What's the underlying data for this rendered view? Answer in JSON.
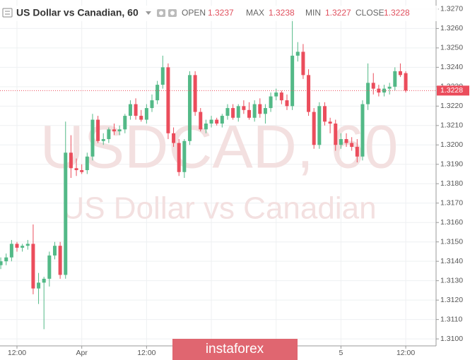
{
  "chart_data": {
    "type": "candlestick",
    "title": "US Dollar vs Canadian, 60",
    "header": {
      "open_label": "OPEN",
      "open": "1.3237",
      "max_label": "MAX",
      "max": "1.3238",
      "min_label": "MIN",
      "min": "1.3227",
      "close_label": "CLOSE",
      "close": "1.3228"
    },
    "watermark": {
      "symbol": "USDCAD, 60",
      "name": "US Dollar vs Canadian"
    },
    "banner": "instaforex",
    "up_color": "#53b987",
    "down_color": "#eb4d5c",
    "categories": [
      null,
      null,
      null,
      "12:00",
      null,
      null,
      null,
      null,
      null,
      null,
      null,
      null,
      null,
      null,
      null,
      "Apr",
      null,
      null,
      null,
      null,
      null,
      null,
      null,
      null,
      null,
      null,
      null,
      "12:00",
      null,
      null,
      null,
      null,
      null,
      null,
      null,
      null,
      null,
      null,
      null,
      null,
      null,
      null,
      null,
      null,
      null,
      null,
      null,
      null,
      null,
      null,
      null,
      null,
      null,
      null,
      null,
      null,
      null,
      null,
      null,
      null,
      null,
      null,
      null,
      "5",
      null,
      null,
      null,
      null,
      null,
      null,
      null,
      null,
      null,
      null,
      null,
      "12:00"
    ],
    "values": [
      [
        1.3138,
        1.3142,
        1.3136,
        1.314
      ],
      [
        1.314,
        1.3144,
        1.3138,
        1.3142
      ],
      [
        1.3142,
        1.3151,
        1.314,
        1.3149
      ],
      [
        1.3149,
        1.315,
        1.3145,
        1.3147
      ],
      [
        1.3147,
        1.3149,
        1.3145,
        1.3148
      ],
      [
        1.3148,
        1.3151,
        1.3146,
        1.3149
      ],
      [
        1.3149,
        1.3159,
        1.3123,
        1.3126
      ],
      [
        1.3126,
        1.3134,
        1.3118,
        1.3129
      ],
      [
        1.3129,
        1.3132,
        1.3105,
        1.3131
      ],
      [
        1.3131,
        1.3145,
        1.3127,
        1.3143
      ],
      [
        1.3143,
        1.315,
        1.3141,
        1.3148
      ],
      [
        1.3148,
        1.315,
        1.3131,
        1.3133
      ],
      [
        1.3133,
        1.3212,
        1.3131,
        1.3196
      ],
      [
        1.3196,
        1.3205,
        1.3183,
        1.3188
      ],
      [
        1.3188,
        1.3193,
        1.3184,
        1.3187
      ],
      [
        1.3187,
        1.319,
        1.3185,
        1.3186
      ],
      [
        1.3187,
        1.3196,
        1.3185,
        1.3194
      ],
      [
        1.3194,
        1.3216,
        1.3192,
        1.3213
      ],
      [
        1.3213,
        1.3215,
        1.3201,
        1.3202
      ],
      [
        1.3202,
        1.3206,
        1.32,
        1.3203
      ],
      [
        1.3203,
        1.3209,
        1.3201,
        1.3208
      ],
      [
        1.3208,
        1.3211,
        1.3205,
        1.3207
      ],
      [
        1.3207,
        1.321,
        1.3205,
        1.3208
      ],
      [
        1.3208,
        1.3216,
        1.3206,
        1.3215
      ],
      [
        1.3215,
        1.3223,
        1.3213,
        1.3221
      ],
      [
        1.3221,
        1.3224,
        1.3213,
        1.3215
      ],
      [
        1.3215,
        1.3218,
        1.3212,
        1.3213
      ],
      [
        1.3213,
        1.3221,
        1.3211,
        1.3219
      ],
      [
        1.3219,
        1.3226,
        1.3217,
        1.3223
      ],
      [
        1.3223,
        1.3233,
        1.3221,
        1.3231
      ],
      [
        1.3231,
        1.3246,
        1.3229,
        1.324
      ],
      [
        1.324,
        1.3242,
        1.3203,
        1.3206
      ],
      [
        1.3206,
        1.3209,
        1.3199,
        1.3201
      ],
      [
        1.3201,
        1.3203,
        1.3184,
        1.3186
      ],
      [
        1.3186,
        1.3203,
        1.3183,
        1.3202
      ],
      [
        1.3202,
        1.3238,
        1.32,
        1.3236
      ],
      [
        1.3236,
        1.3238,
        1.3215,
        1.3217
      ],
      [
        1.3217,
        1.3219,
        1.3207,
        1.3208
      ],
      [
        1.3208,
        1.3213,
        1.3206,
        1.3211
      ],
      [
        1.3211,
        1.3215,
        1.3209,
        1.3213
      ],
      [
        1.3213,
        1.3214,
        1.321,
        1.3211
      ],
      [
        1.3211,
        1.3216,
        1.3209,
        1.3215
      ],
      [
        1.3215,
        1.3221,
        1.3213,
        1.3219
      ],
      [
        1.3219,
        1.3221,
        1.3213,
        1.3214
      ],
      [
        1.3214,
        1.3221,
        1.3212,
        1.322
      ],
      [
        1.322,
        1.3223,
        1.3216,
        1.3218
      ],
      [
        1.3218,
        1.3222,
        1.3213,
        1.3214
      ],
      [
        1.3214,
        1.3223,
        1.3212,
        1.3221
      ],
      [
        1.3221,
        1.3224,
        1.3214,
        1.3216
      ],
      [
        1.3216,
        1.3221,
        1.3211,
        1.3219
      ],
      [
        1.3219,
        1.3227,
        1.3217,
        1.3225
      ],
      [
        1.3225,
        1.3229,
        1.3223,
        1.3227
      ],
      [
        1.3227,
        1.3228,
        1.3221,
        1.3223
      ],
      [
        1.3223,
        1.3226,
        1.3218,
        1.322
      ],
      [
        1.322,
        1.3265,
        1.3218,
        1.3246
      ],
      [
        1.3246,
        1.3253,
        1.3243,
        1.3248
      ],
      [
        1.3248,
        1.3252,
        1.3234,
        1.3236
      ],
      [
        1.3236,
        1.3239,
        1.3215,
        1.3217
      ],
      [
        1.3217,
        1.3219,
        1.3198,
        1.32
      ],
      [
        1.32,
        1.3222,
        1.3198,
        1.322
      ],
      [
        1.322,
        1.3222,
        1.321,
        1.3212
      ],
      [
        1.3212,
        1.3214,
        1.3206,
        1.3211
      ],
      [
        1.3211,
        1.3213,
        1.3197,
        1.32
      ],
      [
        1.32,
        1.3206,
        1.3198,
        1.3203
      ],
      [
        1.3203,
        1.3206,
        1.3199,
        1.3201
      ],
      [
        1.3201,
        1.3204,
        1.3197,
        1.3199
      ],
      [
        1.3199,
        1.3203,
        1.3191,
        1.3194
      ],
      [
        1.3194,
        1.3223,
        1.3192,
        1.3221
      ],
      [
        1.3221,
        1.3242,
        1.3218,
        1.3232
      ],
      [
        1.3232,
        1.3237,
        1.3226,
        1.3229
      ],
      [
        1.3229,
        1.3231,
        1.3225,
        1.3227
      ],
      [
        1.3227,
        1.3231,
        1.3225,
        1.3229
      ],
      [
        1.3229,
        1.3232,
        1.3226,
        1.323
      ],
      [
        1.323,
        1.324,
        1.3228,
        1.3238
      ],
      [
        1.3238,
        1.3242,
        1.3235,
        1.3236
      ],
      [
        1.3237,
        1.3238,
        1.3227,
        1.3228
      ]
    ],
    "last_price": {
      "value": 1.3228,
      "label": "1.3228"
    },
    "ylim": [
      1.30964,
      1.32747
    ],
    "yticks": [
      {
        "value": 1.31,
        "label": "1.3100"
      },
      {
        "value": 1.311,
        "label": "1.3110"
      },
      {
        "value": 1.312,
        "label": "1.3120"
      },
      {
        "value": 1.313,
        "label": "1.3130"
      },
      {
        "value": 1.314,
        "label": "1.3140"
      },
      {
        "value": 1.315,
        "label": "1.3150"
      },
      {
        "value": 1.316,
        "label": "1.3160"
      },
      {
        "value": 1.317,
        "label": "1.3170"
      },
      {
        "value": 1.318,
        "label": "1.3180"
      },
      {
        "value": 1.319,
        "label": "1.3190"
      },
      {
        "value": 1.32,
        "label": "1.3200"
      },
      {
        "value": 1.321,
        "label": "1.3210"
      },
      {
        "value": 1.322,
        "label": "1.3220"
      },
      {
        "value": 1.323,
        "label": "1.3230"
      },
      {
        "value": 1.324,
        "label": "1.3240"
      },
      {
        "value": 1.325,
        "label": "1.3250"
      },
      {
        "value": 1.326,
        "label": "1.3260"
      },
      {
        "value": 1.327,
        "label": "1.3270"
      }
    ],
    "grid": true
  }
}
